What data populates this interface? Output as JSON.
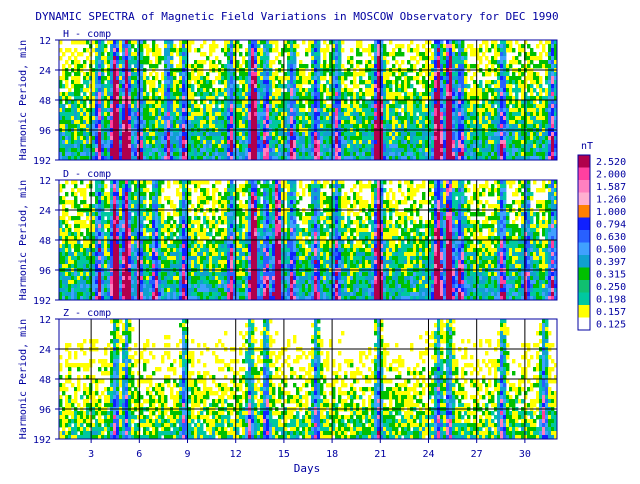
{
  "chart_data": {
    "type": "heatmap",
    "title": "DYNAMIC SPECTRA of Magnetic Field Variations in MOSCOW Observatory for DEC 1990",
    "xlabel": "Days",
    "ylabel": "Harmonic Period, min",
    "x_range": [
      1,
      32
    ],
    "x_ticks": [
      3,
      6,
      9,
      12,
      15,
      18,
      21,
      24,
      27,
      30
    ],
    "y_scale": "log",
    "y_range": [
      12,
      192
    ],
    "y_ticks": [
      12,
      24,
      48,
      96,
      192
    ],
    "grid": true,
    "legend": {
      "unit": "nT",
      "placement": "right",
      "levels": [
        "2.520",
        "2.000",
        "1.587",
        "1.260",
        "1.000",
        "0.794",
        "0.630",
        "0.500",
        "0.397",
        "0.315",
        "0.250",
        "0.198",
        "0.157",
        "0.125"
      ],
      "colors": [
        "#b0004c",
        "#ff40a0",
        "#ff80c0",
        "#ffb0d0",
        "#ff8000",
        "#1020ff",
        "#2860ff",
        "#40a0ff",
        "#10a0d0",
        "#00c000",
        "#10c070",
        "#00c8a0",
        "#ffff00",
        "#ffffff"
      ]
    },
    "panels": [
      {
        "label": "H - comp",
        "storm_days": [
          3.5,
          4.5,
          5.2,
          6.0,
          7.8,
          8.8,
          11.7,
          13.1,
          13.9,
          15.5,
          17.0,
          18.3,
          20.9,
          24.6,
          25.3,
          26.0,
          28.6,
          31.7
        ],
        "strong_days": [
          4.5,
          5.2,
          13.1,
          20.9,
          24.6,
          25.3
        ]
      },
      {
        "label": "D - comp",
        "storm_days": [
          3.5,
          4.5,
          5.2,
          6.0,
          7.0,
          8.8,
          11.7,
          13.1,
          13.9,
          14.6,
          15.5,
          17.0,
          18.3,
          20.9,
          24.6,
          25.3,
          26.0,
          28.6,
          30.1,
          31.7
        ],
        "strong_days": [
          4.5,
          5.2,
          13.1,
          14.6,
          20.9,
          24.6,
          25.3
        ]
      },
      {
        "label": "Z - comp",
        "storm_days": [
          4.5,
          5.2,
          8.8,
          12.9,
          13.9,
          17.0,
          20.9,
          24.6,
          25.3,
          28.6,
          31.2
        ],
        "strong_days": []
      }
    ]
  }
}
